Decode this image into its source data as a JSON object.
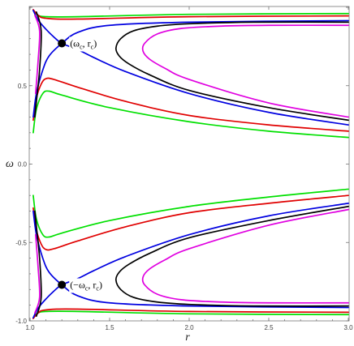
{
  "chart_data": {
    "type": "line",
    "xlabel": "r",
    "ylabel": "ω",
    "xlim": [
      1.0,
      3.0
    ],
    "ylim": [
      -1.0,
      1.0
    ],
    "x_ticks": [
      1.0,
      1.5,
      2.0,
      2.5,
      3.0
    ],
    "x_tick_labels": [
      "1.0",
      "1.5",
      "2.0",
      "2.5",
      "3.0"
    ],
    "y_ticks": [
      -1.0,
      -0.5,
      0.0,
      0.5,
      1.0
    ],
    "y_tick_labels": [
      "-1.0",
      "-0.5",
      "0.0",
      "0.5",
      ""
    ],
    "grid": false,
    "legend": "none",
    "critical_points": [
      {
        "r": 1.2,
        "omega": 0.77,
        "label": "(ω",
        "sub": "c",
        "label_end": ", r",
        "sub2": "c",
        "close": ")"
      },
      {
        "r": 1.2,
        "omega": -0.77,
        "label": "(−ω",
        "sub": "c",
        "label_end": ", r",
        "sub2": "c",
        "close": ")"
      }
    ],
    "series": [
      {
        "color": "#00e000",
        "segments": [
          [
            [
              1.02,
              0.98
            ],
            [
              1.05,
              0.95
            ],
            [
              1.1,
              0.94
            ],
            [
              1.3,
              0.94
            ],
            [
              2.0,
              0.955
            ],
            [
              3.0,
              0.96
            ]
          ],
          [
            [
              1.02,
              0.2
            ],
            [
              1.04,
              0.35
            ],
            [
              1.08,
              0.45
            ],
            [
              1.12,
              0.465
            ],
            [
              1.2,
              0.44
            ],
            [
              1.5,
              0.36
            ],
            [
              2.0,
              0.27
            ],
            [
              2.5,
              0.21
            ],
            [
              3.0,
              0.17
            ]
          ],
          [
            [
              1.02,
              -0.2
            ],
            [
              1.04,
              -0.35
            ],
            [
              1.08,
              -0.45
            ],
            [
              1.12,
              -0.465
            ],
            [
              1.2,
              -0.44
            ],
            [
              1.5,
              -0.36
            ],
            [
              2.0,
              -0.27
            ],
            [
              2.5,
              -0.21
            ],
            [
              3.0,
              -0.16
            ]
          ],
          [
            [
              1.02,
              -0.98
            ],
            [
              1.05,
              -0.95
            ],
            [
              1.1,
              -0.94
            ],
            [
              1.3,
              -0.94
            ],
            [
              2.0,
              -0.955
            ],
            [
              3.0,
              -0.96
            ]
          ]
        ]
      },
      {
        "color": "#e00000",
        "segments": [
          [
            [
              1.02,
              0.985
            ],
            [
              1.05,
              0.95
            ],
            [
              1.1,
              0.93
            ],
            [
              1.3,
              0.925
            ],
            [
              2.0,
              0.94
            ],
            [
              3.0,
              0.945
            ]
          ],
          [
            [
              1.02,
              0.28
            ],
            [
              1.04,
              0.42
            ],
            [
              1.07,
              0.51
            ],
            [
              1.1,
              0.545
            ],
            [
              1.15,
              0.54
            ],
            [
              1.3,
              0.49
            ],
            [
              1.6,
              0.4
            ],
            [
              2.0,
              0.31
            ],
            [
              2.5,
              0.25
            ],
            [
              3.0,
              0.21
            ]
          ],
          [
            [
              1.02,
              -0.28
            ],
            [
              1.04,
              -0.42
            ],
            [
              1.07,
              -0.51
            ],
            [
              1.1,
              -0.545
            ],
            [
              1.15,
              -0.54
            ],
            [
              1.3,
              -0.49
            ],
            [
              1.6,
              -0.4
            ],
            [
              2.0,
              -0.31
            ],
            [
              2.5,
              -0.25
            ],
            [
              3.0,
              -0.2
            ]
          ],
          [
            [
              1.02,
              -0.985
            ],
            [
              1.05,
              -0.95
            ],
            [
              1.1,
              -0.93
            ],
            [
              1.3,
              -0.925
            ],
            [
              2.0,
              -0.94
            ],
            [
              3.0,
              -0.945
            ]
          ]
        ]
      },
      {
        "color": "#0000e0",
        "segments": [
          [
            [
              1.02,
              0.98
            ],
            [
              1.05,
              0.92
            ],
            [
              1.1,
              0.86
            ],
            [
              1.15,
              0.81
            ],
            [
              1.2,
              0.77
            ],
            [
              1.3,
              0.73
            ],
            [
              1.4,
              0.68
            ],
            [
              1.6,
              0.59
            ],
            [
              2.0,
              0.45
            ],
            [
              2.5,
              0.33
            ],
            [
              3.0,
              0.25
            ]
          ],
          [
            [
              1.02,
              0.3
            ],
            [
              1.04,
              0.45
            ],
            [
              1.08,
              0.6
            ],
            [
              1.12,
              0.69
            ],
            [
              1.2,
              0.77
            ],
            [
              1.3,
              0.84
            ],
            [
              1.5,
              0.885
            ],
            [
              2.0,
              0.905
            ],
            [
              3.0,
              0.915
            ]
          ],
          [
            [
              1.02,
              -0.3
            ],
            [
              1.04,
              -0.45
            ],
            [
              1.08,
              -0.6
            ],
            [
              1.12,
              -0.69
            ],
            [
              1.2,
              -0.77
            ],
            [
              1.3,
              -0.84
            ],
            [
              1.5,
              -0.885
            ],
            [
              2.0,
              -0.905
            ],
            [
              3.0,
              -0.915
            ]
          ],
          [
            [
              1.02,
              -0.98
            ],
            [
              1.05,
              -0.92
            ],
            [
              1.1,
              -0.86
            ],
            [
              1.15,
              -0.81
            ],
            [
              1.2,
              -0.77
            ],
            [
              1.3,
              -0.73
            ],
            [
              1.4,
              -0.68
            ],
            [
              1.6,
              -0.59
            ],
            [
              2.0,
              -0.45
            ],
            [
              2.5,
              -0.33
            ],
            [
              3.0,
              -0.25
            ]
          ]
        ]
      },
      {
        "color": "#000000",
        "segments": [
          [
            [
              1.04,
              0.97
            ],
            [
              1.07,
              0.85
            ],
            [
              1.06,
              0.6
            ],
            [
              1.04,
              0.4
            ],
            [
              1.03,
              0.3
            ]
          ],
          [
            [
              3.0,
              0.905
            ],
            [
              2.4,
              0.905
            ],
            [
              2.0,
              0.895
            ],
            [
              1.8,
              0.88
            ],
            [
              1.65,
              0.85
            ],
            [
              1.57,
              0.8
            ],
            [
              1.54,
              0.74
            ],
            [
              1.56,
              0.69
            ],
            [
              1.62,
              0.64
            ],
            [
              1.75,
              0.57
            ],
            [
              2.0,
              0.47
            ],
            [
              2.5,
              0.36
            ],
            [
              3.0,
              0.28
            ]
          ],
          [
            [
              1.04,
              -0.97
            ],
            [
              1.07,
              -0.85
            ],
            [
              1.06,
              -0.6
            ],
            [
              1.04,
              -0.4
            ],
            [
              1.03,
              -0.3
            ]
          ],
          [
            [
              3.0,
              -0.905
            ],
            [
              2.4,
              -0.905
            ],
            [
              2.0,
              -0.895
            ],
            [
              1.8,
              -0.88
            ],
            [
              1.65,
              -0.85
            ],
            [
              1.57,
              -0.8
            ],
            [
              1.54,
              -0.74
            ],
            [
              1.56,
              -0.69
            ],
            [
              1.62,
              -0.64
            ],
            [
              1.75,
              -0.57
            ],
            [
              2.0,
              -0.47
            ],
            [
              2.5,
              -0.36
            ],
            [
              3.0,
              -0.27
            ]
          ]
        ]
      },
      {
        "color": "#e000e0",
        "segments": [
          [
            [
              1.03,
              0.95
            ],
            [
              1.06,
              0.85
            ],
            [
              1.05,
              0.65
            ],
            [
              1.035,
              0.45
            ]
          ],
          [
            [
              3.0,
              0.885
            ],
            [
              2.5,
              0.885
            ],
            [
              2.2,
              0.88
            ],
            [
              1.95,
              0.865
            ],
            [
              1.8,
              0.83
            ],
            [
              1.72,
              0.77
            ],
            [
              1.71,
              0.72
            ],
            [
              1.75,
              0.67
            ],
            [
              1.85,
              0.61
            ],
            [
              2.0,
              0.54
            ],
            [
              2.5,
              0.39
            ],
            [
              3.0,
              0.3
            ]
          ],
          [
            [
              1.03,
              -0.95
            ],
            [
              1.06,
              -0.85
            ],
            [
              1.05,
              -0.65
            ],
            [
              1.035,
              -0.45
            ]
          ],
          [
            [
              3.0,
              -0.885
            ],
            [
              2.5,
              -0.885
            ],
            [
              2.2,
              -0.88
            ],
            [
              1.95,
              -0.865
            ],
            [
              1.8,
              -0.83
            ],
            [
              1.72,
              -0.77
            ],
            [
              1.71,
              -0.72
            ],
            [
              1.75,
              -0.67
            ],
            [
              1.85,
              -0.61
            ],
            [
              2.0,
              -0.54
            ],
            [
              2.5,
              -0.39
            ],
            [
              3.0,
              -0.29
            ]
          ]
        ]
      }
    ]
  }
}
